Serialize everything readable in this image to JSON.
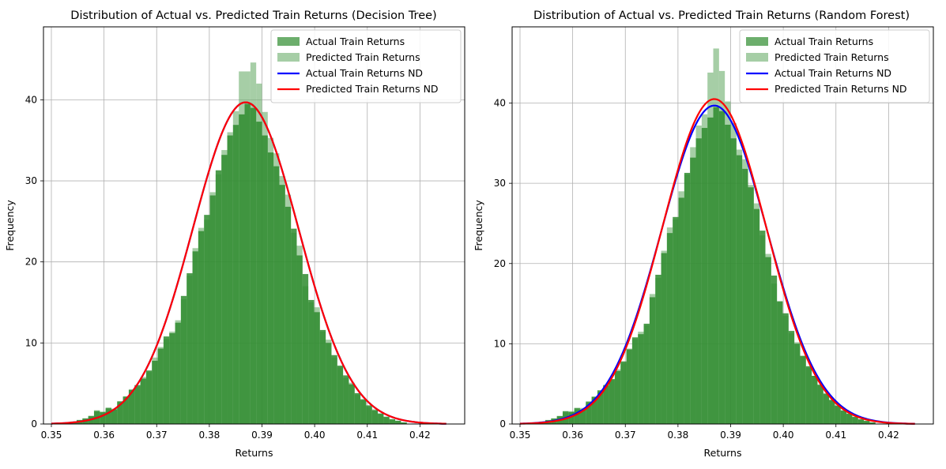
{
  "chart_data": [
    {
      "type": "bar",
      "title": "Distribution of Actual vs. Predicted Train Returns (Decision Tree)",
      "xlabel": "Returns",
      "ylabel": "Frequency",
      "xlim": [
        0.3485,
        0.4285
      ],
      "ylim": [
        0,
        49
      ],
      "x_ticks": [
        "0.35",
        "0.36",
        "0.37",
        "0.38",
        "0.39",
        "0.40",
        "0.41",
        "0.42"
      ],
      "y_ticks": [
        "0",
        "10",
        "20",
        "30",
        "40"
      ],
      "grid": true,
      "legend_position": "top-right",
      "legend": [
        "Actual Train Returns",
        "Predicted Train Returns",
        "Actual Train Returns ND",
        "Predicted Train Returns ND"
      ],
      "colors": {
        "actual_hist": "#2e8b2e",
        "predicted_hist": "#6aae6a",
        "actual_nd": "#0000ff",
        "predicted_nd": "#ff0000"
      },
      "histogram": {
        "bin_start": 0.3515,
        "bin_width": 0.0011,
        "actual": [
          0.1,
          0.2,
          0.3,
          0.5,
          0.7,
          1.0,
          1.6,
          1.5,
          2.0,
          1.8,
          2.8,
          3.4,
          4.2,
          4.8,
          5.6,
          6.6,
          7.8,
          9.3,
          10.8,
          11.2,
          12.5,
          15.8,
          18.6,
          21.3,
          23.8,
          25.8,
          28.2,
          31.3,
          33.2,
          35.6,
          36.9,
          38.2,
          39.5,
          39.0,
          37.3,
          35.6,
          33.5,
          31.8,
          29.5,
          26.8,
          24.1,
          20.8,
          18.5,
          15.3,
          13.8,
          11.6,
          10.0,
          8.5,
          7.2,
          6.0,
          4.9,
          3.8,
          3.0,
          2.3,
          1.7,
          1.3,
          0.9,
          0.6,
          0.4,
          0.2
        ],
        "predicted": [
          0.1,
          0.2,
          0.3,
          0.4,
          0.6,
          0.9,
          1.7,
          1.4,
          1.9,
          1.9,
          2.7,
          3.3,
          4.3,
          4.6,
          5.8,
          6.4,
          8.2,
          9.5,
          10.5,
          11.4,
          12.8,
          15.4,
          18.3,
          21.7,
          24.2,
          25.2,
          28.6,
          30.8,
          33.8,
          36.0,
          38.6,
          43.5,
          43.5,
          44.6,
          42.0,
          38.5,
          35.3,
          33.4,
          30.6,
          28.3,
          23.6,
          22.0,
          17.0,
          15.0,
          14.4,
          11.4,
          10.4,
          8.2,
          7.0,
          5.7,
          5.1,
          3.6,
          3.1,
          2.1,
          1.8,
          1.2,
          0.8,
          0.5,
          0.4,
          0.2
        ]
      },
      "nd_curves": [
        {
          "name": "Actual Train Returns ND",
          "mean": 0.3869,
          "std": 0.01005,
          "x_range": [
            0.35,
            0.425
          ]
        },
        {
          "name": "Predicted Train Returns ND",
          "mean": 0.3869,
          "std": 0.01005,
          "x_range": [
            0.35,
            0.425
          ]
        }
      ]
    },
    {
      "type": "bar",
      "title": "Distribution of Actual vs. Predicted Train Returns (Random Forest)",
      "xlabel": "Returns",
      "ylabel": "Frequency",
      "xlim": [
        0.3485,
        0.4285
      ],
      "ylim": [
        0,
        49.5
      ],
      "x_ticks": [
        "0.35",
        "0.36",
        "0.37",
        "0.38",
        "0.39",
        "0.40",
        "0.41",
        "0.42"
      ],
      "y_ticks": [
        "0",
        "10",
        "20",
        "30",
        "40"
      ],
      "grid": true,
      "legend_position": "top-right",
      "legend": [
        "Actual Train Returns",
        "Predicted Train Returns",
        "Actual Train Returns ND",
        "Predicted Train Returns ND"
      ],
      "colors": {
        "actual_hist": "#2e8b2e",
        "predicted_hist": "#6aae6a",
        "actual_nd": "#0000ff",
        "predicted_nd": "#ff0000"
      },
      "histogram": {
        "bin_start": 0.3515,
        "bin_width": 0.0011,
        "actual": [
          0.1,
          0.2,
          0.3,
          0.5,
          0.7,
          1.0,
          1.6,
          1.5,
          2.0,
          1.8,
          2.8,
          3.4,
          4.2,
          4.8,
          5.6,
          6.6,
          7.8,
          9.3,
          10.8,
          11.2,
          12.5,
          15.8,
          18.6,
          21.3,
          23.8,
          25.8,
          28.2,
          31.3,
          33.2,
          35.6,
          36.9,
          38.2,
          39.5,
          39.0,
          37.3,
          35.6,
          33.5,
          31.8,
          29.5,
          26.8,
          24.1,
          20.8,
          18.5,
          15.3,
          13.8,
          11.6,
          10.0,
          8.5,
          7.2,
          6.0,
          4.9,
          3.8,
          3.0,
          2.3,
          1.7,
          1.3,
          0.9,
          0.6,
          0.4,
          0.2
        ],
        "predicted": [
          0.1,
          0.1,
          0.2,
          0.4,
          0.6,
          0.9,
          1.4,
          1.6,
          1.8,
          2.0,
          2.6,
          3.4,
          4.0,
          4.9,
          5.5,
          6.8,
          7.6,
          9.4,
          10.6,
          11.5,
          12.3,
          16.2,
          18.2,
          21.6,
          24.5,
          25.5,
          29.0,
          31.1,
          34.5,
          37.2,
          38.6,
          43.8,
          46.8,
          44.0,
          40.2,
          37.5,
          34.2,
          33.0,
          29.8,
          27.5,
          23.5,
          21.2,
          17.5,
          15.2,
          13.5,
          11.3,
          10.2,
          8.4,
          7.0,
          6.0,
          4.8,
          3.7,
          3.0,
          2.2,
          1.6,
          1.2,
          0.8,
          0.5,
          0.3,
          0.2
        ]
      },
      "nd_curves": [
        {
          "name": "Actual Train Returns ND",
          "mean": 0.3869,
          "std": 0.01005,
          "x_range": [
            0.35,
            0.425
          ]
        },
        {
          "name": "Predicted Train Returns ND",
          "mean": 0.3869,
          "std": 0.00985,
          "x_range": [
            0.35,
            0.425
          ]
        }
      ]
    }
  ]
}
